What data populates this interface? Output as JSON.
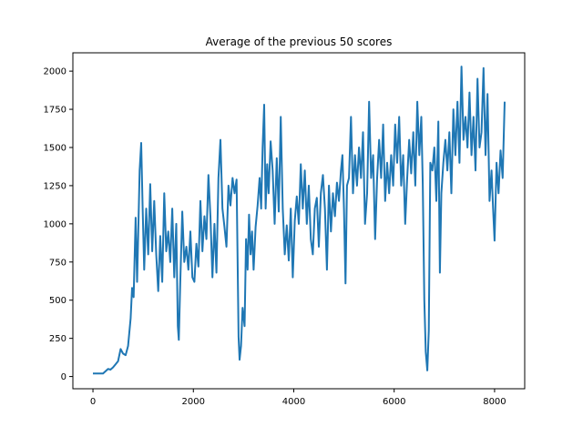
{
  "chart_data": {
    "type": "line",
    "title": "Average of the previous 50 scores",
    "xlabel": "",
    "ylabel": "",
    "xlim": [
      -400,
      8600
    ],
    "ylim": [
      -80,
      2120
    ],
    "xticks": [
      0,
      2000,
      4000,
      6000,
      8000
    ],
    "yticks": [
      0,
      250,
      500,
      750,
      1000,
      1250,
      1500,
      1750,
      2000
    ],
    "grid": false,
    "series": [
      {
        "color": "#1f77b4",
        "points": [
          [
            0,
            20
          ],
          [
            200,
            20
          ],
          [
            300,
            50
          ],
          [
            350,
            45
          ],
          [
            400,
            60
          ],
          [
            450,
            80
          ],
          [
            500,
            100
          ],
          [
            550,
            180
          ],
          [
            600,
            150
          ],
          [
            650,
            140
          ],
          [
            700,
            200
          ],
          [
            750,
            380
          ],
          [
            780,
            580
          ],
          [
            810,
            520
          ],
          [
            850,
            1040
          ],
          [
            880,
            620
          ],
          [
            900,
            900
          ],
          [
            930,
            1350
          ],
          [
            960,
            1530
          ],
          [
            990,
            1100
          ],
          [
            1020,
            700
          ],
          [
            1060,
            1100
          ],
          [
            1100,
            800
          ],
          [
            1140,
            1260
          ],
          [
            1180,
            820
          ],
          [
            1220,
            1150
          ],
          [
            1260,
            800
          ],
          [
            1300,
            560
          ],
          [
            1340,
            920
          ],
          [
            1380,
            620
          ],
          [
            1420,
            1200
          ],
          [
            1460,
            820
          ],
          [
            1500,
            950
          ],
          [
            1540,
            750
          ],
          [
            1580,
            1100
          ],
          [
            1620,
            650
          ],
          [
            1660,
            1000
          ],
          [
            1690,
            330
          ],
          [
            1710,
            240
          ],
          [
            1740,
            620
          ],
          [
            1780,
            1080
          ],
          [
            1820,
            750
          ],
          [
            1860,
            850
          ],
          [
            1900,
            700
          ],
          [
            1940,
            950
          ],
          [
            1980,
            650
          ],
          [
            2020,
            620
          ],
          [
            2060,
            870
          ],
          [
            2100,
            720
          ],
          [
            2140,
            1150
          ],
          [
            2180,
            820
          ],
          [
            2220,
            1050
          ],
          [
            2260,
            900
          ],
          [
            2300,
            1320
          ],
          [
            2340,
            1050
          ],
          [
            2380,
            650
          ],
          [
            2420,
            1000
          ],
          [
            2460,
            680
          ],
          [
            2500,
            1300
          ],
          [
            2540,
            1550
          ],
          [
            2580,
            1100
          ],
          [
            2620,
            980
          ],
          [
            2660,
            850
          ],
          [
            2700,
            1250
          ],
          [
            2740,
            1120
          ],
          [
            2780,
            1300
          ],
          [
            2820,
            1200
          ],
          [
            2860,
            1290
          ],
          [
            2880,
            780
          ],
          [
            2900,
            260
          ],
          [
            2920,
            110
          ],
          [
            2950,
            200
          ],
          [
            2980,
            450
          ],
          [
            3020,
            330
          ],
          [
            3050,
            900
          ],
          [
            3080,
            700
          ],
          [
            3110,
            1060
          ],
          [
            3140,
            800
          ],
          [
            3170,
            950
          ],
          [
            3200,
            700
          ],
          [
            3240,
            980
          ],
          [
            3280,
            1120
          ],
          [
            3320,
            1300
          ],
          [
            3350,
            1100
          ],
          [
            3380,
            1500
          ],
          [
            3410,
            1780
          ],
          [
            3440,
            1100
          ],
          [
            3470,
            1390
          ],
          [
            3500,
            1200
          ],
          [
            3540,
            1540
          ],
          [
            3580,
            1350
          ],
          [
            3620,
            1000
          ],
          [
            3660,
            1430
          ],
          [
            3700,
            1080
          ],
          [
            3740,
            1700
          ],
          [
            3780,
            1100
          ],
          [
            3820,
            800
          ],
          [
            3860,
            990
          ],
          [
            3900,
            760
          ],
          [
            3940,
            1100
          ],
          [
            3980,
            650
          ],
          [
            4020,
            1020
          ],
          [
            4060,
            1180
          ],
          [
            4100,
            1000
          ],
          [
            4140,
            1390
          ],
          [
            4180,
            1100
          ],
          [
            4220,
            1350
          ],
          [
            4260,
            1000
          ],
          [
            4300,
            1250
          ],
          [
            4340,
            900
          ],
          [
            4380,
            800
          ],
          [
            4420,
            1100
          ],
          [
            4460,
            1170
          ],
          [
            4500,
            850
          ],
          [
            4540,
            1200
          ],
          [
            4580,
            1320
          ],
          [
            4620,
            1100
          ],
          [
            4660,
            700
          ],
          [
            4700,
            1250
          ],
          [
            4740,
            950
          ],
          [
            4780,
            1200
          ],
          [
            4820,
            1050
          ],
          [
            4860,
            1270
          ],
          [
            4900,
            1150
          ],
          [
            4940,
            1350
          ],
          [
            4970,
            1450
          ],
          [
            5000,
            1100
          ],
          [
            5030,
            610
          ],
          [
            5060,
            1250
          ],
          [
            5100,
            1300
          ],
          [
            5140,
            1700
          ],
          [
            5180,
            1200
          ],
          [
            5220,
            1450
          ],
          [
            5260,
            1250
          ],
          [
            5300,
            1500
          ],
          [
            5340,
            1300
          ],
          [
            5380,
            1600
          ],
          [
            5420,
            1000
          ],
          [
            5460,
            1200
          ],
          [
            5500,
            1800
          ],
          [
            5540,
            1300
          ],
          [
            5580,
            1450
          ],
          [
            5620,
            900
          ],
          [
            5660,
            1300
          ],
          [
            5700,
            1550
          ],
          [
            5740,
            1300
          ],
          [
            5780,
            1650
          ],
          [
            5820,
            1150
          ],
          [
            5860,
            1400
          ],
          [
            5900,
            1200
          ],
          [
            5940,
            1450
          ],
          [
            5980,
            1250
          ],
          [
            6020,
            1650
          ],
          [
            6060,
            1400
          ],
          [
            6100,
            1700
          ],
          [
            6140,
            1250
          ],
          [
            6180,
            1450
          ],
          [
            6220,
            1000
          ],
          [
            6260,
            1300
          ],
          [
            6300,
            1550
          ],
          [
            6340,
            1330
          ],
          [
            6380,
            1600
          ],
          [
            6420,
            1250
          ],
          [
            6460,
            1800
          ],
          [
            6500,
            1450
          ],
          [
            6540,
            1700
          ],
          [
            6570,
            1260
          ],
          [
            6600,
            500
          ],
          [
            6630,
            160
          ],
          [
            6660,
            40
          ],
          [
            6690,
            300
          ],
          [
            6720,
            1400
          ],
          [
            6760,
            1350
          ],
          [
            6800,
            1500
          ],
          [
            6840,
            1150
          ],
          [
            6880,
            1670
          ],
          [
            6910,
            680
          ],
          [
            6940,
            1200
          ],
          [
            6980,
            1400
          ],
          [
            7020,
            1550
          ],
          [
            7060,
            1350
          ],
          [
            7100,
            1600
          ],
          [
            7140,
            1200
          ],
          [
            7180,
            1750
          ],
          [
            7220,
            1450
          ],
          [
            7260,
            1800
          ],
          [
            7300,
            1400
          ],
          [
            7340,
            2030
          ],
          [
            7380,
            1550
          ],
          [
            7420,
            1700
          ],
          [
            7460,
            1500
          ],
          [
            7500,
            1860
          ],
          [
            7540,
            1450
          ],
          [
            7580,
            1700
          ],
          [
            7620,
            1350
          ],
          [
            7660,
            1950
          ],
          [
            7700,
            1500
          ],
          [
            7740,
            1600
          ],
          [
            7780,
            2020
          ],
          [
            7820,
            1450
          ],
          [
            7860,
            1850
          ],
          [
            7900,
            1150
          ],
          [
            7940,
            1350
          ],
          [
            7970,
            1100
          ],
          [
            8000,
            890
          ],
          [
            8040,
            1400
          ],
          [
            8080,
            1200
          ],
          [
            8120,
            1480
          ],
          [
            8160,
            1300
          ],
          [
            8200,
            1800
          ]
        ]
      }
    ]
  }
}
